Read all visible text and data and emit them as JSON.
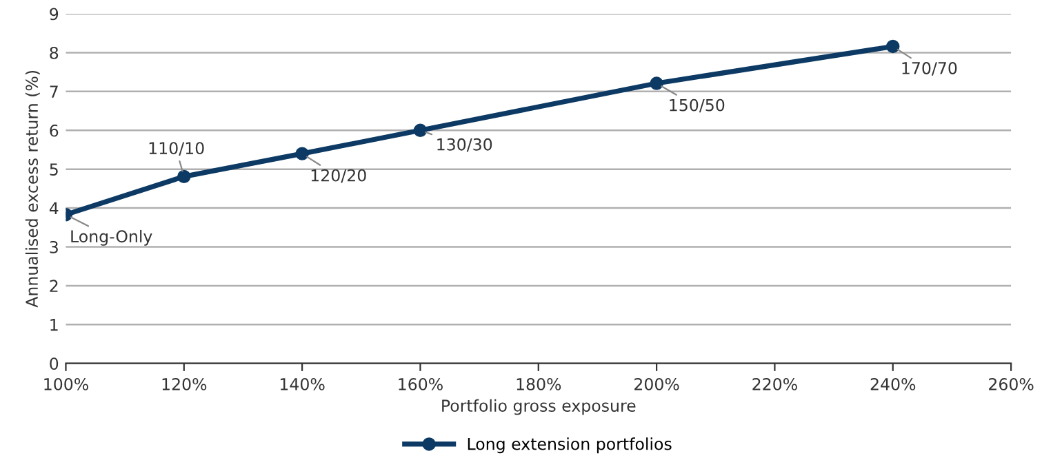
{
  "chart_data": {
    "type": "line",
    "xlabel": "Portfolio gross exposure",
    "ylabel": "Annualised excess return (%)",
    "x": [
      100,
      120,
      140,
      160,
      200,
      240
    ],
    "series": [
      {
        "name": "Long extension portfolios",
        "color": "#0d3a64",
        "values": [
          3.83,
          4.81,
          5.4,
          6.0,
          7.21,
          8.16
        ]
      }
    ],
    "xlim": [
      100,
      260
    ],
    "xticks": [
      {
        "value": 100,
        "label": "100%"
      },
      {
        "value": 120,
        "label": "120%"
      },
      {
        "value": 140,
        "label": "140%"
      },
      {
        "value": 160,
        "label": "160%"
      },
      {
        "value": 180,
        "label": "180%"
      },
      {
        "value": 200,
        "label": "200%"
      },
      {
        "value": 220,
        "label": "220%"
      },
      {
        "value": 240,
        "label": "240%"
      },
      {
        "value": 260,
        "label": "260%"
      }
    ],
    "ylim": [
      0,
      9
    ],
    "yticks": [
      0,
      1,
      2,
      3,
      4,
      5,
      6,
      7,
      8,
      9
    ],
    "annotations": [
      {
        "text": "Long-Only",
        "x": 100,
        "y": 3.83
      },
      {
        "text": "110/10",
        "x": 120,
        "y": 4.81
      },
      {
        "text": "120/20",
        "x": 140,
        "y": 5.4
      },
      {
        "text": "130/30",
        "x": 160,
        "y": 6.0
      },
      {
        "text": "150/50",
        "x": 200,
        "y": 7.21
      },
      {
        "text": "170/70",
        "x": 240,
        "y": 8.16
      }
    ],
    "grid": "y",
    "legend": "bottom",
    "marker": "circle",
    "line_style": "solid"
  }
}
